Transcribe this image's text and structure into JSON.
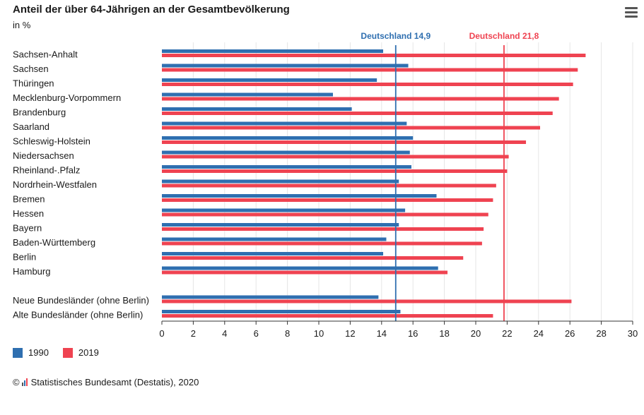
{
  "header": {
    "title": "Anteil der über 64-Jährigen an der Gesamtbevölkerung",
    "subtitle": "in %"
  },
  "source": {
    "copyright": "©",
    "text": "Statistisches Bundesamt (Destatis), 2020"
  },
  "colors": {
    "s1990": "#2f6fb0",
    "s2019": "#ef4351",
    "grid": "#e6e6e6",
    "text": "#1a1a1a"
  },
  "chart_data": {
    "type": "bar",
    "orientation": "horizontal",
    "title": "Anteil der über 64-Jährigen an der Gesamtbevölkerung",
    "subtitle": "in %",
    "categories": [
      "Sachsen-Anhalt",
      "Sachsen",
      "Thüringen",
      "Mecklenburg-Vorpommern",
      "Brandenburg",
      "Saarland",
      "Schleswig-Holstein",
      "Niedersachsen",
      "Rheinland-.Pfalz",
      "Nordrhein-Westfalen",
      "Bremen",
      "Hessen",
      "Bayern",
      "Baden-Württemberg",
      "Berlin",
      "Hamburg",
      "",
      "Neue Bundesländer (ohne Berlin)",
      "Alte Bundesländer (ohne Berlin)"
    ],
    "series": [
      {
        "name": "1990",
        "color": "#2f6fb0",
        "values": [
          14.1,
          15.7,
          13.7,
          10.9,
          12.1,
          15.6,
          16.0,
          15.8,
          15.9,
          15.1,
          17.5,
          15.5,
          15.1,
          14.3,
          14.1,
          17.6,
          null,
          13.8,
          15.2
        ]
      },
      {
        "name": "2019",
        "color": "#ef4351",
        "values": [
          27.0,
          26.5,
          26.2,
          25.3,
          24.9,
          24.1,
          23.2,
          22.1,
          22.0,
          21.3,
          21.1,
          20.8,
          20.5,
          20.4,
          19.2,
          18.2,
          null,
          26.1,
          21.1
        ]
      }
    ],
    "xlim": [
      0,
      30
    ],
    "xticks": [
      0,
      2,
      4,
      6,
      8,
      10,
      12,
      14,
      16,
      18,
      20,
      22,
      24,
      26,
      28,
      30
    ],
    "grid": true,
    "legend": "bottom-left",
    "reference_lines": [
      {
        "value": 14.9,
        "label": "Deutschland 14,9",
        "color": "#2f6fb0"
      },
      {
        "value": 21.8,
        "label": "Deutschland 21,8",
        "color": "#ef4351"
      }
    ]
  }
}
